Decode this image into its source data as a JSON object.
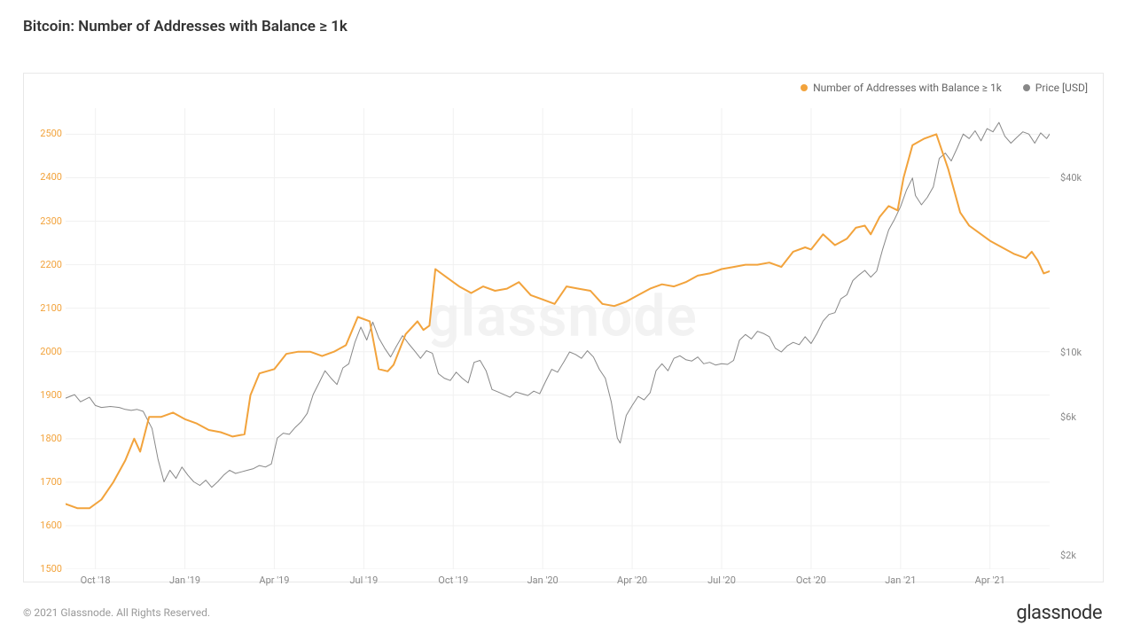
{
  "title": "Bitcoin: Number of Addresses with Balance ≥ 1k",
  "watermark": "glassnode",
  "copyright": "© 2021 Glassnode. All Rights Reserved.",
  "brand": "glassnode",
  "chart": {
    "type": "line-dual-axis",
    "background_color": "#ffffff",
    "border_color": "#e8e8e8",
    "grid_color": "#f1f1f1",
    "title_fontsize": 17,
    "label_fontsize": 11,
    "watermark_color": "#f2f2f2",
    "legend": {
      "items": [
        {
          "label": "Number of Addresses with Balance ≥ 1k",
          "color": "#f2a33c"
        },
        {
          "label": "Price [USD]",
          "color": "#888888"
        }
      ]
    },
    "x": {
      "domain_t": [
        0,
        33
      ],
      "ticks": [
        {
          "t": 1,
          "label": "Oct '18"
        },
        {
          "t": 4,
          "label": "Jan '19"
        },
        {
          "t": 7,
          "label": "Apr '19"
        },
        {
          "t": 10,
          "label": "Jul '19"
        },
        {
          "t": 13,
          "label": "Oct '19"
        },
        {
          "t": 16,
          "label": "Jan '20"
        },
        {
          "t": 19,
          "label": "Apr '20"
        },
        {
          "t": 22,
          "label": "Jul '20"
        },
        {
          "t": 25,
          "label": "Oct '20"
        },
        {
          "t": 28,
          "label": "Jan '21"
        },
        {
          "t": 31,
          "label": "Apr '21"
        }
      ]
    },
    "y_left": {
      "scale": "linear",
      "lim": [
        1500,
        2560
      ],
      "color": "#f2a33c",
      "ticks": [
        1500,
        1600,
        1700,
        1800,
        1900,
        2000,
        2100,
        2200,
        2300,
        2400,
        2500
      ]
    },
    "y_right": {
      "scale": "log",
      "lim": [
        1800,
        70000
      ],
      "color": "#888888",
      "ticks": [
        {
          "v": 2000,
          "label": "$2k"
        },
        {
          "v": 6000,
          "label": "$6k"
        },
        {
          "v": 10000,
          "label": "$10k"
        },
        {
          "v": 40000,
          "label": "$40k"
        }
      ]
    },
    "series_addresses": {
      "color": "#f2a33c",
      "line_width": 2.0,
      "points": [
        [
          0.0,
          1650
        ],
        [
          0.4,
          1640
        ],
        [
          0.8,
          1640
        ],
        [
          1.2,
          1660
        ],
        [
          1.6,
          1700
        ],
        [
          2.0,
          1750
        ],
        [
          2.3,
          1800
        ],
        [
          2.5,
          1770
        ],
        [
          2.8,
          1850
        ],
        [
          3.2,
          1850
        ],
        [
          3.6,
          1860
        ],
        [
          4.0,
          1845
        ],
        [
          4.4,
          1835
        ],
        [
          4.8,
          1820
        ],
        [
          5.2,
          1815
        ],
        [
          5.6,
          1805
        ],
        [
          6.0,
          1810
        ],
        [
          6.2,
          1900
        ],
        [
          6.5,
          1950
        ],
        [
          7.0,
          1960
        ],
        [
          7.4,
          1995
        ],
        [
          7.8,
          2000
        ],
        [
          8.2,
          2000
        ],
        [
          8.6,
          1990
        ],
        [
          9.0,
          2000
        ],
        [
          9.4,
          2015
        ],
        [
          9.8,
          2080
        ],
        [
          10.2,
          2070
        ],
        [
          10.5,
          1960
        ],
        [
          10.8,
          1955
        ],
        [
          11.0,
          1970
        ],
        [
          11.4,
          2040
        ],
        [
          11.8,
          2070
        ],
        [
          12.0,
          2050
        ],
        [
          12.2,
          2060
        ],
        [
          12.4,
          2190
        ],
        [
          12.8,
          2170
        ],
        [
          13.2,
          2150
        ],
        [
          13.6,
          2135
        ],
        [
          14.0,
          2150
        ],
        [
          14.4,
          2140
        ],
        [
          14.8,
          2145
        ],
        [
          15.2,
          2160
        ],
        [
          15.6,
          2130
        ],
        [
          16.0,
          2120
        ],
        [
          16.4,
          2110
        ],
        [
          16.8,
          2150
        ],
        [
          17.2,
          2145
        ],
        [
          17.6,
          2140
        ],
        [
          18.0,
          2110
        ],
        [
          18.4,
          2105
        ],
        [
          18.8,
          2115
        ],
        [
          19.2,
          2130
        ],
        [
          19.6,
          2145
        ],
        [
          20.0,
          2155
        ],
        [
          20.4,
          2150
        ],
        [
          20.8,
          2160
        ],
        [
          21.2,
          2175
        ],
        [
          21.6,
          2180
        ],
        [
          22.0,
          2190
        ],
        [
          22.4,
          2195
        ],
        [
          22.8,
          2200
        ],
        [
          23.2,
          2200
        ],
        [
          23.6,
          2205
        ],
        [
          24.0,
          2195
        ],
        [
          24.4,
          2230
        ],
        [
          24.8,
          2240
        ],
        [
          25.0,
          2235
        ],
        [
          25.4,
          2270
        ],
        [
          25.8,
          2245
        ],
        [
          26.2,
          2260
        ],
        [
          26.5,
          2285
        ],
        [
          26.8,
          2290
        ],
        [
          27.0,
          2270
        ],
        [
          27.3,
          2310
        ],
        [
          27.6,
          2335
        ],
        [
          27.9,
          2325
        ],
        [
          28.1,
          2400
        ],
        [
          28.4,
          2475
        ],
        [
          28.8,
          2490
        ],
        [
          29.2,
          2500
        ],
        [
          29.4,
          2460
        ],
        [
          29.6,
          2420
        ],
        [
          29.8,
          2370
        ],
        [
          30.0,
          2320
        ],
        [
          30.3,
          2290
        ],
        [
          30.6,
          2275
        ],
        [
          31.0,
          2255
        ],
        [
          31.4,
          2240
        ],
        [
          31.8,
          2225
        ],
        [
          32.2,
          2215
        ],
        [
          32.4,
          2230
        ],
        [
          32.6,
          2210
        ],
        [
          32.8,
          2180
        ],
        [
          33.0,
          2185
        ]
      ]
    },
    "series_price": {
      "color": "#888888",
      "line_width": 1.0,
      "points": [
        [
          0.0,
          7000
        ],
        [
          0.3,
          7200
        ],
        [
          0.5,
          6800
        ],
        [
          0.8,
          7050
        ],
        [
          1.0,
          6600
        ],
        [
          1.2,
          6500
        ],
        [
          1.5,
          6550
        ],
        [
          1.8,
          6500
        ],
        [
          2.0,
          6400
        ],
        [
          2.2,
          6350
        ],
        [
          2.4,
          6400
        ],
        [
          2.6,
          6300
        ],
        [
          2.9,
          5500
        ],
        [
          3.1,
          4300
        ],
        [
          3.3,
          3600
        ],
        [
          3.5,
          3950
        ],
        [
          3.7,
          3700
        ],
        [
          3.9,
          4050
        ],
        [
          4.1,
          3800
        ],
        [
          4.3,
          3600
        ],
        [
          4.5,
          3500
        ],
        [
          4.7,
          3650
        ],
        [
          4.9,
          3450
        ],
        [
          5.1,
          3600
        ],
        [
          5.3,
          3800
        ],
        [
          5.5,
          3950
        ],
        [
          5.7,
          3850
        ],
        [
          5.9,
          3900
        ],
        [
          6.1,
          3950
        ],
        [
          6.3,
          4000
        ],
        [
          6.5,
          4100
        ],
        [
          6.7,
          4050
        ],
        [
          6.9,
          4150
        ],
        [
          7.1,
          5100
        ],
        [
          7.3,
          5300
        ],
        [
          7.5,
          5250
        ],
        [
          7.7,
          5550
        ],
        [
          7.9,
          5800
        ],
        [
          8.1,
          6200
        ],
        [
          8.3,
          7200
        ],
        [
          8.5,
          7900
        ],
        [
          8.7,
          8700
        ],
        [
          8.9,
          8200
        ],
        [
          9.1,
          7800
        ],
        [
          9.3,
          8900
        ],
        [
          9.5,
          9200
        ],
        [
          9.7,
          10900
        ],
        [
          9.9,
          12300
        ],
        [
          10.1,
          11100
        ],
        [
          10.3,
          12800
        ],
        [
          10.5,
          11300
        ],
        [
          10.7,
          10400
        ],
        [
          10.9,
          9700
        ],
        [
          11.1,
          10600
        ],
        [
          11.3,
          11500
        ],
        [
          11.5,
          10800
        ],
        [
          11.7,
          10200
        ],
        [
          11.9,
          9600
        ],
        [
          12.1,
          10200
        ],
        [
          12.3,
          10000
        ],
        [
          12.5,
          8500
        ],
        [
          12.7,
          8200
        ],
        [
          12.9,
          8050
        ],
        [
          13.1,
          8600
        ],
        [
          13.3,
          8200
        ],
        [
          13.5,
          7900
        ],
        [
          13.7,
          9300
        ],
        [
          13.9,
          9450
        ],
        [
          14.1,
          8700
        ],
        [
          14.3,
          7500
        ],
        [
          14.5,
          7350
        ],
        [
          14.7,
          7200
        ],
        [
          14.9,
          7050
        ],
        [
          15.1,
          7350
        ],
        [
          15.3,
          7250
        ],
        [
          15.5,
          7150
        ],
        [
          15.7,
          7400
        ],
        [
          15.9,
          7250
        ],
        [
          16.1,
          8000
        ],
        [
          16.3,
          8800
        ],
        [
          16.5,
          8600
        ],
        [
          16.7,
          9300
        ],
        [
          16.9,
          10100
        ],
        [
          17.1,
          9900
        ],
        [
          17.3,
          9600
        ],
        [
          17.5,
          10200
        ],
        [
          17.7,
          9700
        ],
        [
          17.9,
          8800
        ],
        [
          18.1,
          8200
        ],
        [
          18.3,
          6800
        ],
        [
          18.5,
          5100
        ],
        [
          18.6,
          4900
        ],
        [
          18.8,
          6100
        ],
        [
          19.0,
          6600
        ],
        [
          19.2,
          7100
        ],
        [
          19.4,
          6900
        ],
        [
          19.6,
          7300
        ],
        [
          19.8,
          8700
        ],
        [
          20.0,
          9200
        ],
        [
          20.2,
          8700
        ],
        [
          20.4,
          9600
        ],
        [
          20.6,
          9800
        ],
        [
          20.8,
          9500
        ],
        [
          21.0,
          9400
        ],
        [
          21.2,
          9700
        ],
        [
          21.4,
          9200
        ],
        [
          21.6,
          9300
        ],
        [
          21.8,
          9100
        ],
        [
          22.0,
          9200
        ],
        [
          22.2,
          9150
        ],
        [
          22.4,
          9450
        ],
        [
          22.6,
          11100
        ],
        [
          22.8,
          11600
        ],
        [
          23.0,
          11200
        ],
        [
          23.2,
          11900
        ],
        [
          23.4,
          11700
        ],
        [
          23.6,
          11400
        ],
        [
          23.8,
          10400
        ],
        [
          24.0,
          10100
        ],
        [
          24.2,
          10600
        ],
        [
          24.4,
          10900
        ],
        [
          24.6,
          10700
        ],
        [
          24.8,
          11400
        ],
        [
          25.0,
          10800
        ],
        [
          25.2,
          11700
        ],
        [
          25.4,
          12900
        ],
        [
          25.6,
          13600
        ],
        [
          25.8,
          13800
        ],
        [
          26.0,
          15400
        ],
        [
          26.2,
          15900
        ],
        [
          26.4,
          17800
        ],
        [
          26.6,
          18600
        ],
        [
          26.8,
          19300
        ],
        [
          27.0,
          18300
        ],
        [
          27.2,
          19200
        ],
        [
          27.4,
          22800
        ],
        [
          27.6,
          26600
        ],
        [
          27.8,
          29000
        ],
        [
          28.0,
          32000
        ],
        [
          28.2,
          36500
        ],
        [
          28.4,
          40200
        ],
        [
          28.5,
          35000
        ],
        [
          28.7,
          32500
        ],
        [
          28.9,
          34500
        ],
        [
          29.1,
          37500
        ],
        [
          29.3,
          47000
        ],
        [
          29.5,
          49000
        ],
        [
          29.7,
          46000
        ],
        [
          29.9,
          51000
        ],
        [
          30.1,
          57000
        ],
        [
          30.3,
          55000
        ],
        [
          30.5,
          58500
        ],
        [
          30.7,
          54000
        ],
        [
          30.9,
          59500
        ],
        [
          31.1,
          58000
        ],
        [
          31.3,
          62500
        ],
        [
          31.5,
          56000
        ],
        [
          31.7,
          53000
        ],
        [
          31.9,
          55500
        ],
        [
          32.1,
          58000
        ],
        [
          32.3,
          57000
        ],
        [
          32.5,
          53000
        ],
        [
          32.7,
          57500
        ],
        [
          32.9,
          55000
        ],
        [
          33.0,
          57000
        ]
      ]
    }
  }
}
